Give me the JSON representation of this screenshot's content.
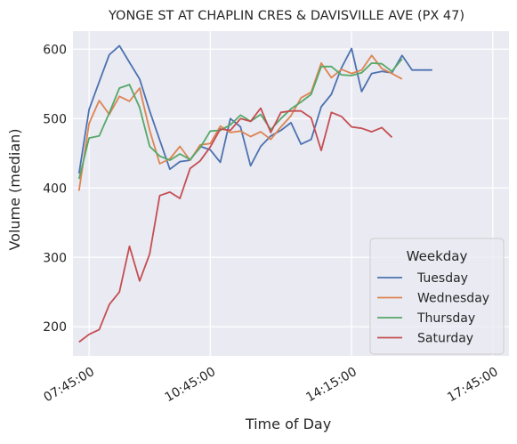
{
  "chart_data": {
    "type": "line",
    "title": "YONGE ST AT CHAPLIN CRES & DAVISVILLE AVE (PX 47)",
    "xlabel": "Time of Day",
    "ylabel": "Volume (median)",
    "x_ticks": [
      "07:45:00",
      "10:45:00",
      "14:15:00",
      "17:45:00"
    ],
    "x_tick_positions_hours": [
      7.75,
      10.75,
      14.25,
      17.75
    ],
    "x_range_hours": [
      7.35,
      18.15
    ],
    "ylim": [
      158,
      626
    ],
    "y_ticks": [
      200,
      300,
      400,
      500,
      600
    ],
    "grid": true,
    "background": "#eaeaf2",
    "legend": {
      "title": "Weekday",
      "position": "bottom-right"
    },
    "x_hours": [
      7.5,
      7.75,
      8.0,
      8.25,
      8.5,
      8.75,
      9.0,
      9.25,
      9.5,
      9.75,
      10.0,
      10.25,
      10.5,
      10.75,
      11.0,
      11.25,
      11.5,
      11.75,
      12.0,
      12.25,
      12.5,
      12.75,
      13.0,
      13.25,
      13.5,
      13.75,
      14.0,
      14.25,
      14.5,
      14.75,
      15.0,
      15.25,
      15.5,
      15.75,
      16.0,
      16.25,
      16.5,
      16.75,
      17.0,
      17.25,
      17.5
    ],
    "series": [
      {
        "name": "Tuesday",
        "color": "#4c72b0",
        "values": [
          421,
          513,
          553,
          592,
          605,
          581,
          557,
          511,
          469,
          427,
          438,
          440,
          460,
          455,
          437,
          500,
          488,
          432,
          460,
          475,
          483,
          494,
          463,
          470,
          517,
          535,
          573,
          601,
          539,
          565,
          568,
          566,
          591,
          570,
          570,
          570,
          null,
          null,
          null,
          null,
          null
        ]
      },
      {
        "name": "Wednesday",
        "color": "#dd8452",
        "values": [
          396,
          493,
          526,
          506,
          532,
          525,
          544,
          483,
          435,
          442,
          460,
          440,
          462,
          464,
          489,
          480,
          482,
          474,
          481,
          470,
          488,
          504,
          530,
          538,
          580,
          559,
          571,
          565,
          570,
          591,
          572,
          565,
          557,
          null,
          null,
          null,
          null,
          null,
          null,
          null,
          null
        ]
      },
      {
        "name": "Thursday",
        "color": "#55a868",
        "values": [
          413,
          472,
          475,
          508,
          544,
          549,
          516,
          460,
          446,
          440,
          449,
          441,
          458,
          482,
          483,
          491,
          505,
          496,
          506,
          484,
          500,
          514,
          524,
          535,
          575,
          575,
          563,
          562,
          566,
          580,
          579,
          568,
          586,
          null,
          null,
          null,
          null,
          null,
          null,
          null,
          null
        ]
      },
      {
        "name": "Saturday",
        "color": "#c44e52",
        "values": [
          178,
          189,
          196,
          232,
          250,
          316,
          266,
          305,
          389,
          394,
          385,
          428,
          439,
          459,
          485,
          483,
          500,
          496,
          515,
          480,
          509,
          511,
          511,
          501,
          454,
          509,
          503,
          488,
          486,
          481,
          487,
          473,
          null,
          null,
          null,
          null,
          null,
          null,
          null,
          null,
          null
        ]
      }
    ]
  }
}
